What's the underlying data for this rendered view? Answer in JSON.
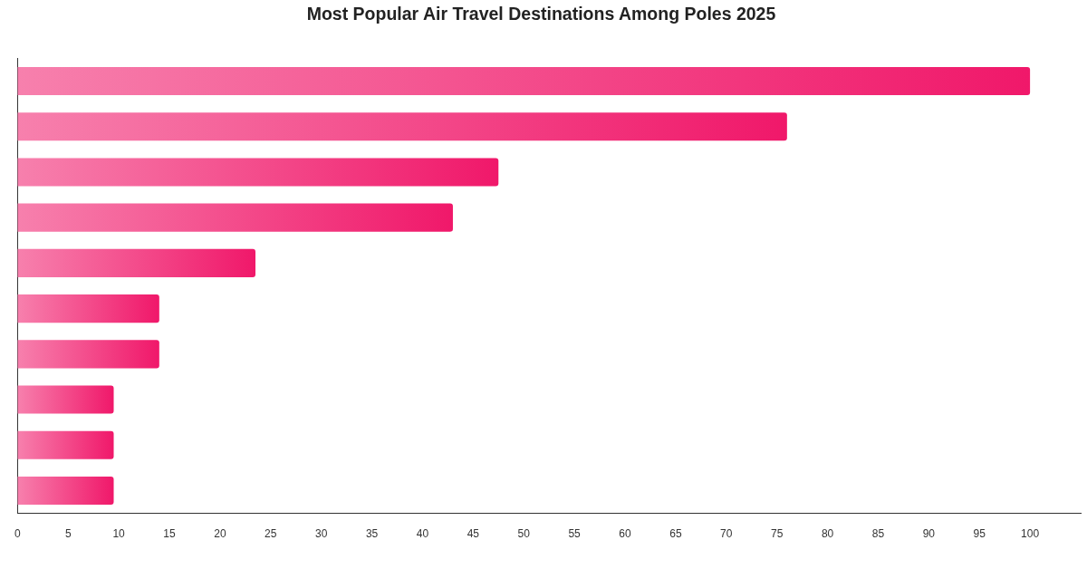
{
  "chart_data": {
    "type": "bar",
    "orientation": "horizontal",
    "title": "Most Popular Air Travel Destinations Among Poles 2025",
    "categories": [
      null,
      null,
      null,
      null,
      null,
      null,
      null,
      null,
      null,
      null
    ],
    "values": [
      100,
      76,
      47.5,
      43,
      23.5,
      14,
      14,
      9.5,
      9.5,
      9.5
    ],
    "color": "#f0186a",
    "xlim": [
      0,
      105
    ],
    "xticks": [
      0,
      5,
      10,
      15,
      20,
      25,
      30,
      35,
      40,
      45,
      50,
      55,
      60,
      65,
      70,
      75,
      80,
      85,
      90,
      95,
      100
    ]
  }
}
